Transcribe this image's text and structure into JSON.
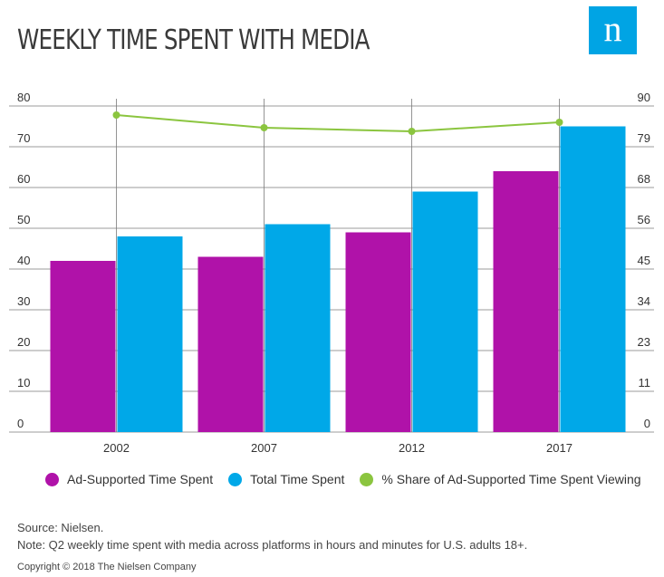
{
  "title": "WEEKLY TIME SPENT WITH MEDIA",
  "logo": {
    "letter": "n"
  },
  "colors": {
    "ad_supported": "#b012a9",
    "total": "#00a8e8",
    "share": "#8bc53f",
    "logo": "#00a4e4",
    "grid": "#7a7a7a"
  },
  "chart_data": {
    "type": "bar",
    "categories": [
      "2002",
      "2007",
      "2012",
      "2017"
    ],
    "series": [
      {
        "name": "Ad-Supported Time Spent",
        "type": "bar",
        "axis": "left",
        "values": [
          42,
          43,
          49,
          64
        ]
      },
      {
        "name": "Total Time Spent",
        "type": "bar",
        "axis": "left",
        "values": [
          48,
          51,
          59,
          75
        ]
      },
      {
        "name": "% Share of Ad-Supported Time Spent Viewing",
        "type": "line",
        "axis": "right",
        "values": [
          87.5,
          84,
          83,
          85.5
        ]
      }
    ],
    "ylim": [
      0,
      80
    ],
    "y_ticks": [
      "0",
      "10",
      "20",
      "30",
      "40",
      "50",
      "60",
      "70",
      "80"
    ],
    "y2lim": [
      0,
      90
    ],
    "y2_ticks": [
      "0",
      "11",
      "23",
      "34",
      "45",
      "56",
      "68",
      "79",
      "90"
    ],
    "grid": true,
    "legend_position": "bottom"
  },
  "legend": [
    {
      "label": "Ad-Supported Time Spent",
      "color": "#b012a9"
    },
    {
      "label": "Total Time Spent",
      "color": "#00a8e8"
    },
    {
      "label": "% Share of Ad-Supported Time Spent Viewing",
      "color": "#8bc53f"
    }
  ],
  "notes": {
    "source": "Source: Nielsen.",
    "note": "Note: Q2 weekly time spent with media across platforms in hours and minutes for U.S. adults 18+."
  },
  "copyright": "Copyright © 2018 The Nielsen Company"
}
